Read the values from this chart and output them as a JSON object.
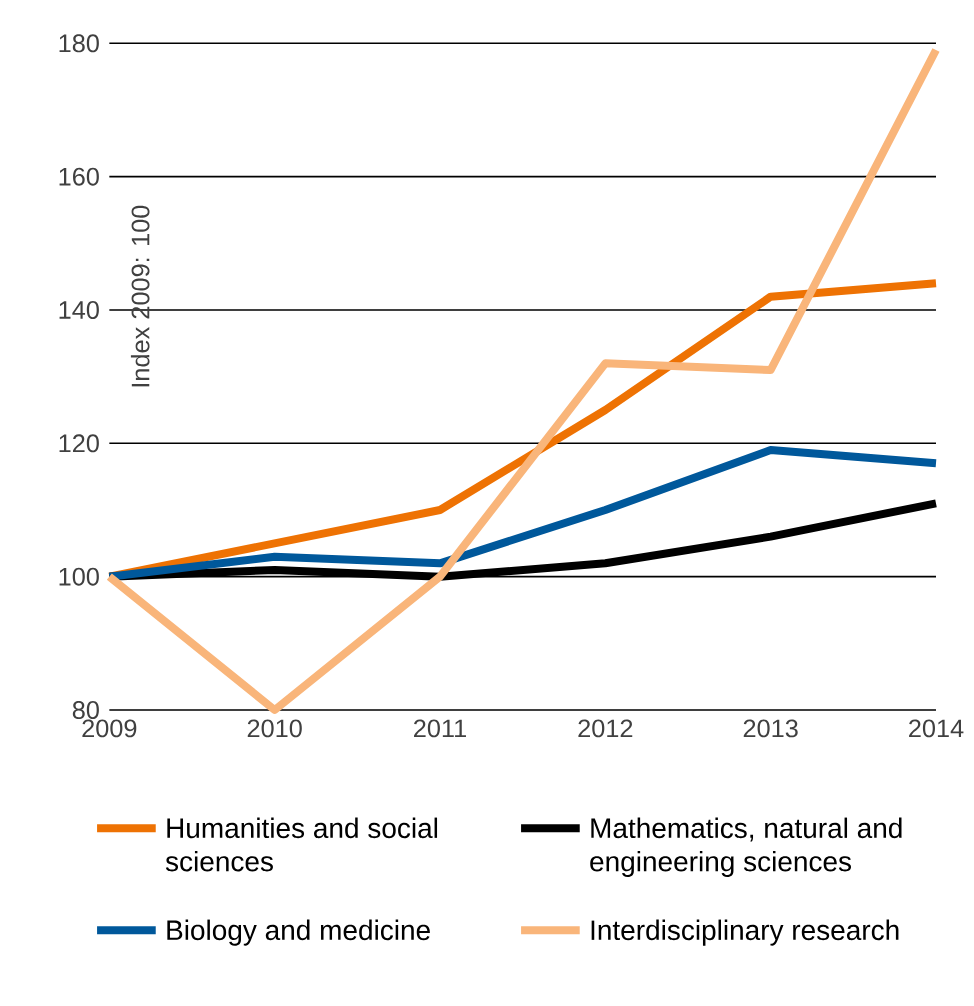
{
  "chart_data": {
    "type": "line",
    "ylabel": "Index 2009: 100",
    "x": [
      2009,
      2010,
      2011,
      2012,
      2013,
      2014
    ],
    "series": [
      {
        "name": "Humanities and social sciences",
        "color": "#ee7203",
        "values": [
          100,
          105,
          110,
          125,
          142,
          144
        ]
      },
      {
        "name": "Mathematics, natural and engineering sciences",
        "color": "#000000",
        "values": [
          100,
          101,
          100,
          102,
          106,
          111
        ]
      },
      {
        "name": "Biology and medicine",
        "color": "#00589b",
        "values": [
          100,
          103,
          102,
          110,
          119,
          117
        ]
      },
      {
        "name": "Interdisciplinary research",
        "color": "#f9b57a",
        "values": [
          100,
          80,
          100,
          132,
          131,
          179
        ]
      }
    ],
    "xlim": [
      2009,
      2014
    ],
    "xticks": [
      2009,
      2010,
      2011,
      2012,
      2013,
      2014
    ],
    "ylim": [
      80,
      180
    ],
    "yticks": [
      80,
      100,
      120,
      140,
      160,
      180
    ],
    "grid": "y",
    "legend": "bottom",
    "marker": "none",
    "line_style": "solid"
  }
}
